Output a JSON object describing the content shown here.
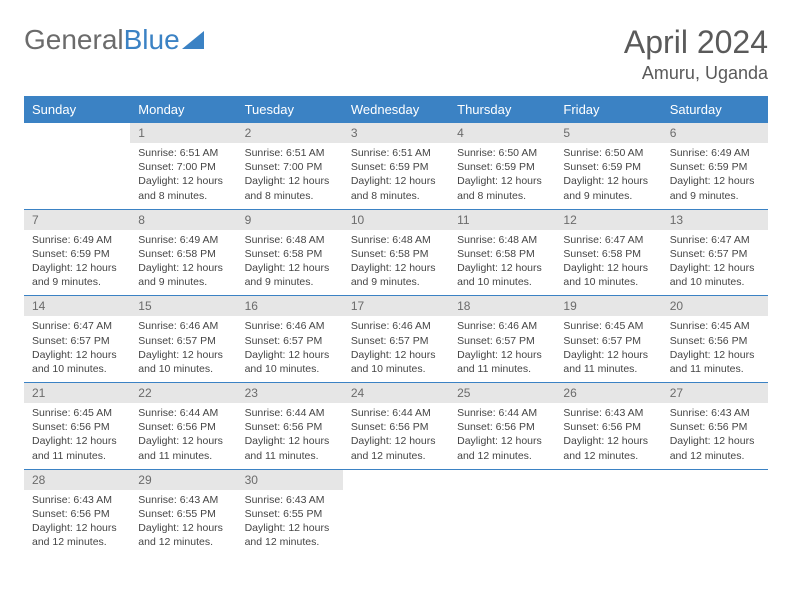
{
  "logo": {
    "text1": "General",
    "text2": "Blue"
  },
  "title": "April 2024",
  "location": "Amuru, Uganda",
  "colors": {
    "header_bg": "#3b82c4",
    "header_text": "#ffffff",
    "daynum_bg": "#e6e6e6",
    "text": "#454545",
    "rule": "#3b82c4"
  },
  "weekdays": [
    "Sunday",
    "Monday",
    "Tuesday",
    "Wednesday",
    "Thursday",
    "Friday",
    "Saturday"
  ],
  "start_offset": 1,
  "days": [
    {
      "n": 1,
      "sr": "6:51 AM",
      "ss": "7:00 PM",
      "dl": "12 hours and 8 minutes."
    },
    {
      "n": 2,
      "sr": "6:51 AM",
      "ss": "7:00 PM",
      "dl": "12 hours and 8 minutes."
    },
    {
      "n": 3,
      "sr": "6:51 AM",
      "ss": "6:59 PM",
      "dl": "12 hours and 8 minutes."
    },
    {
      "n": 4,
      "sr": "6:50 AM",
      "ss": "6:59 PM",
      "dl": "12 hours and 8 minutes."
    },
    {
      "n": 5,
      "sr": "6:50 AM",
      "ss": "6:59 PM",
      "dl": "12 hours and 9 minutes."
    },
    {
      "n": 6,
      "sr": "6:49 AM",
      "ss": "6:59 PM",
      "dl": "12 hours and 9 minutes."
    },
    {
      "n": 7,
      "sr": "6:49 AM",
      "ss": "6:59 PM",
      "dl": "12 hours and 9 minutes."
    },
    {
      "n": 8,
      "sr": "6:49 AM",
      "ss": "6:58 PM",
      "dl": "12 hours and 9 minutes."
    },
    {
      "n": 9,
      "sr": "6:48 AM",
      "ss": "6:58 PM",
      "dl": "12 hours and 9 minutes."
    },
    {
      "n": 10,
      "sr": "6:48 AM",
      "ss": "6:58 PM",
      "dl": "12 hours and 9 minutes."
    },
    {
      "n": 11,
      "sr": "6:48 AM",
      "ss": "6:58 PM",
      "dl": "12 hours and 10 minutes."
    },
    {
      "n": 12,
      "sr": "6:47 AM",
      "ss": "6:58 PM",
      "dl": "12 hours and 10 minutes."
    },
    {
      "n": 13,
      "sr": "6:47 AM",
      "ss": "6:57 PM",
      "dl": "12 hours and 10 minutes."
    },
    {
      "n": 14,
      "sr": "6:47 AM",
      "ss": "6:57 PM",
      "dl": "12 hours and 10 minutes."
    },
    {
      "n": 15,
      "sr": "6:46 AM",
      "ss": "6:57 PM",
      "dl": "12 hours and 10 minutes."
    },
    {
      "n": 16,
      "sr": "6:46 AM",
      "ss": "6:57 PM",
      "dl": "12 hours and 10 minutes."
    },
    {
      "n": 17,
      "sr": "6:46 AM",
      "ss": "6:57 PM",
      "dl": "12 hours and 10 minutes."
    },
    {
      "n": 18,
      "sr": "6:46 AM",
      "ss": "6:57 PM",
      "dl": "12 hours and 11 minutes."
    },
    {
      "n": 19,
      "sr": "6:45 AM",
      "ss": "6:57 PM",
      "dl": "12 hours and 11 minutes."
    },
    {
      "n": 20,
      "sr": "6:45 AM",
      "ss": "6:56 PM",
      "dl": "12 hours and 11 minutes."
    },
    {
      "n": 21,
      "sr": "6:45 AM",
      "ss": "6:56 PM",
      "dl": "12 hours and 11 minutes."
    },
    {
      "n": 22,
      "sr": "6:44 AM",
      "ss": "6:56 PM",
      "dl": "12 hours and 11 minutes."
    },
    {
      "n": 23,
      "sr": "6:44 AM",
      "ss": "6:56 PM",
      "dl": "12 hours and 11 minutes."
    },
    {
      "n": 24,
      "sr": "6:44 AM",
      "ss": "6:56 PM",
      "dl": "12 hours and 12 minutes."
    },
    {
      "n": 25,
      "sr": "6:44 AM",
      "ss": "6:56 PM",
      "dl": "12 hours and 12 minutes."
    },
    {
      "n": 26,
      "sr": "6:43 AM",
      "ss": "6:56 PM",
      "dl": "12 hours and 12 minutes."
    },
    {
      "n": 27,
      "sr": "6:43 AM",
      "ss": "6:56 PM",
      "dl": "12 hours and 12 minutes."
    },
    {
      "n": 28,
      "sr": "6:43 AM",
      "ss": "6:56 PM",
      "dl": "12 hours and 12 minutes."
    },
    {
      "n": 29,
      "sr": "6:43 AM",
      "ss": "6:55 PM",
      "dl": "12 hours and 12 minutes."
    },
    {
      "n": 30,
      "sr": "6:43 AM",
      "ss": "6:55 PM",
      "dl": "12 hours and 12 minutes."
    }
  ],
  "labels": {
    "sunrise": "Sunrise: ",
    "sunset": "Sunset: ",
    "daylight": "Daylight: "
  }
}
